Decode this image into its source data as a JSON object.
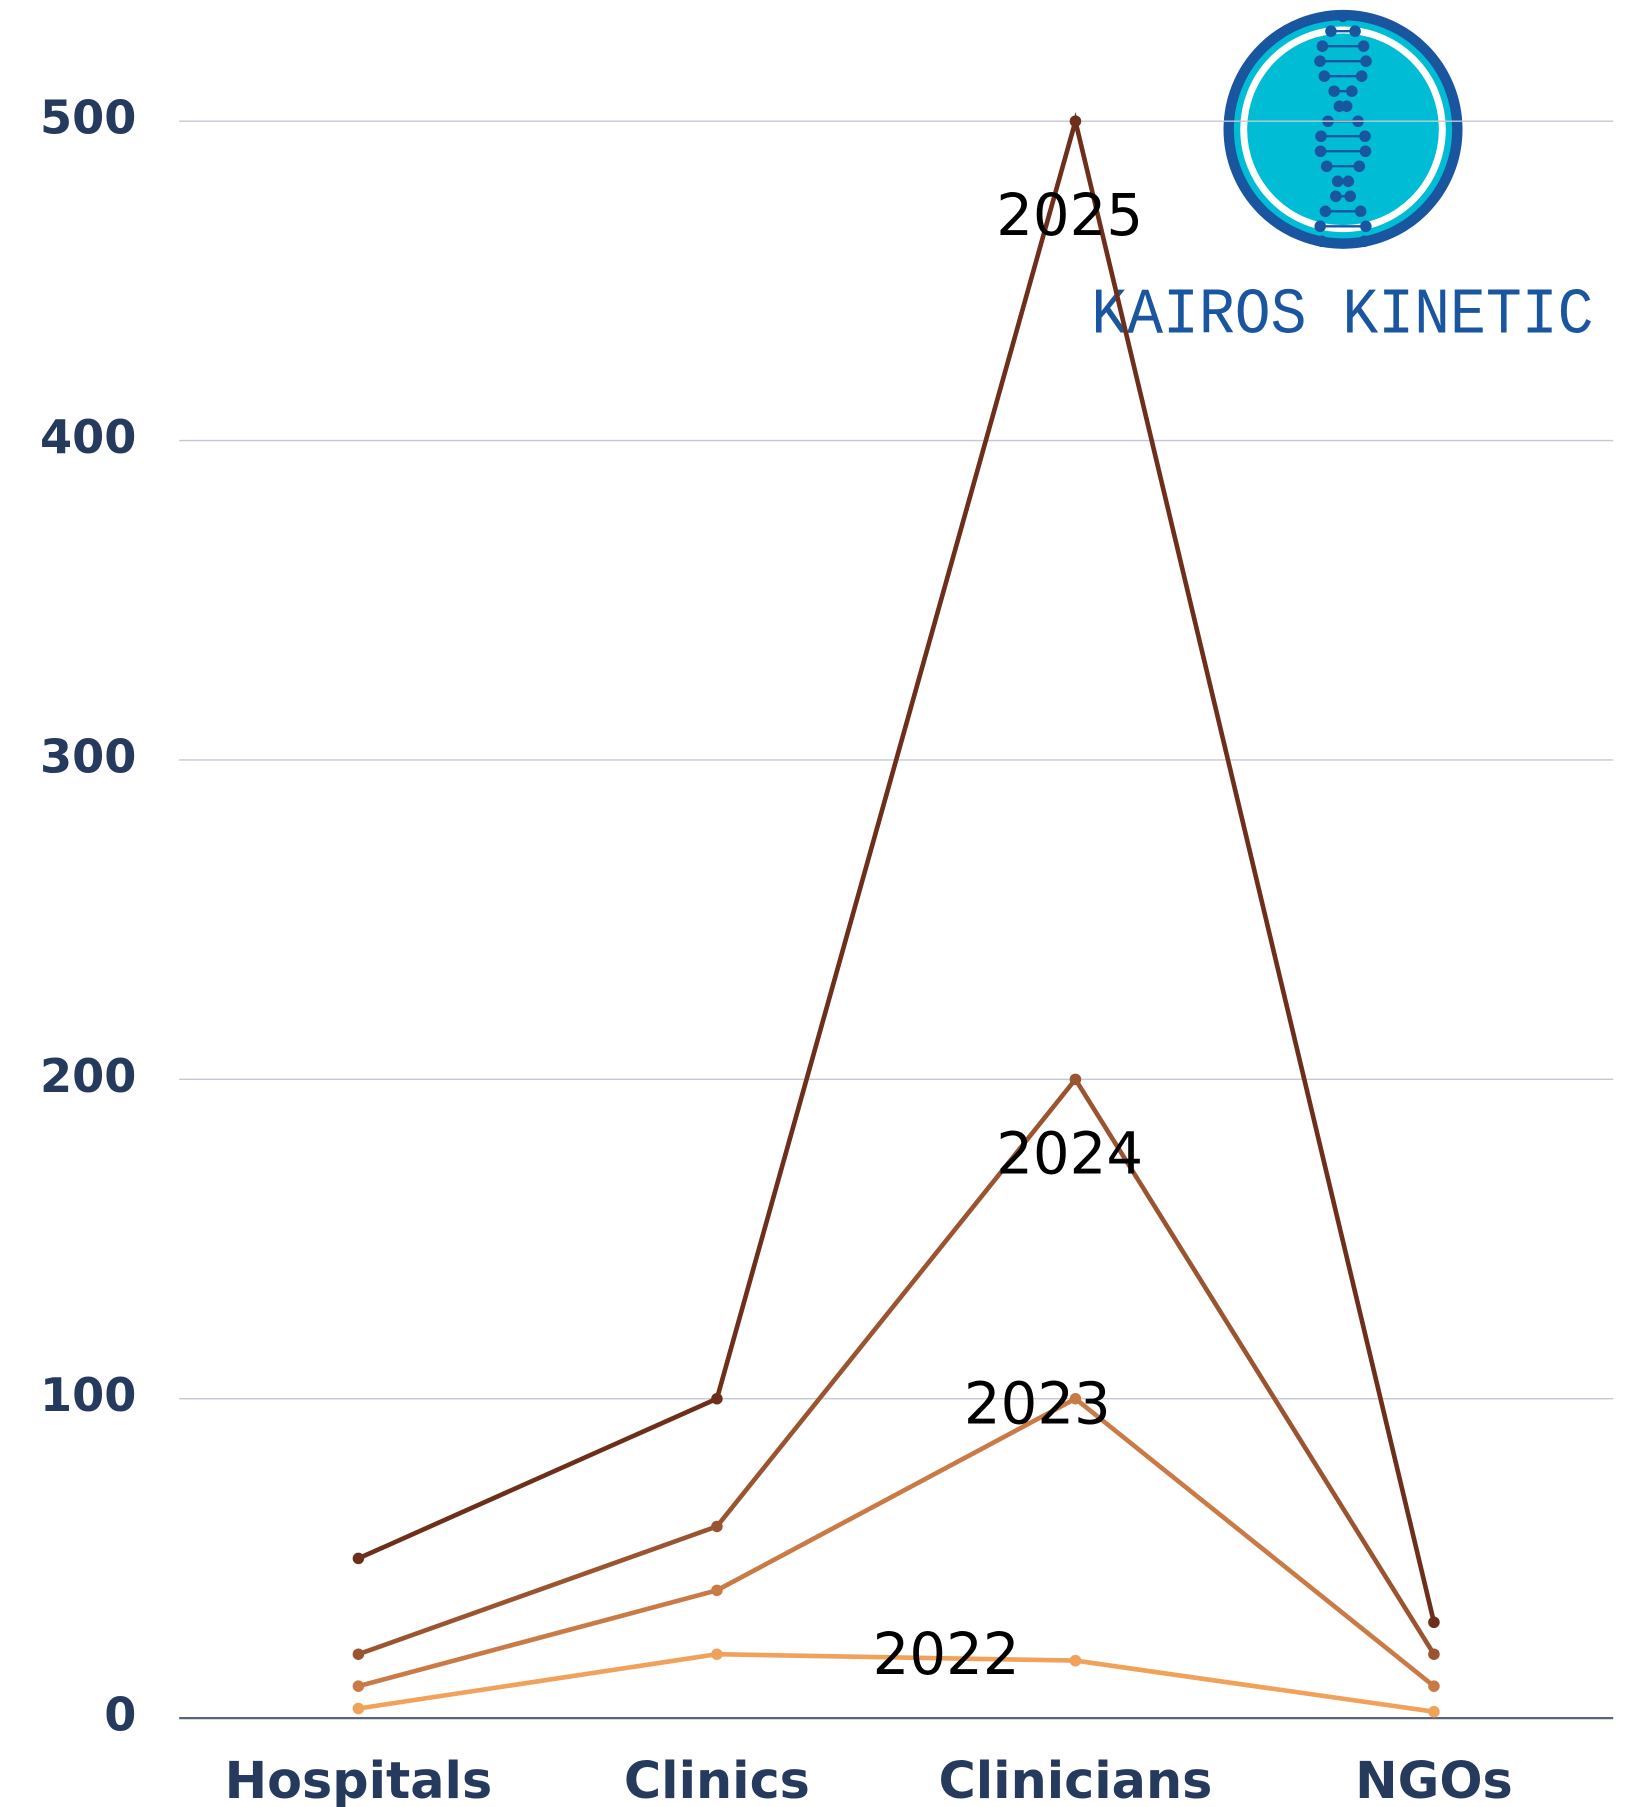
{
  "chart_data": {
    "type": "line",
    "categories": [
      "Hospitals",
      "Clinics",
      "Clinicians",
      "NGOs"
    ],
    "series": [
      {
        "name": "2025",
        "color": "#6e2f1a",
        "values": [
          50,
          100,
          500,
          30
        ]
      },
      {
        "name": "2024",
        "color": "#9a5530",
        "values": [
          20,
          60,
          200,
          20
        ]
      },
      {
        "name": "2023",
        "color": "#c97a45",
        "values": [
          10,
          40,
          100,
          10
        ]
      },
      {
        "name": "2022",
        "color": "#f0a25a",
        "values": [
          3,
          20,
          18,
          2
        ]
      }
    ],
    "ylim": [
      0,
      500
    ],
    "yticks": [
      0,
      100,
      200,
      300,
      400,
      500
    ],
    "grid": true,
    "logo": "KAIROS KINETIC"
  }
}
